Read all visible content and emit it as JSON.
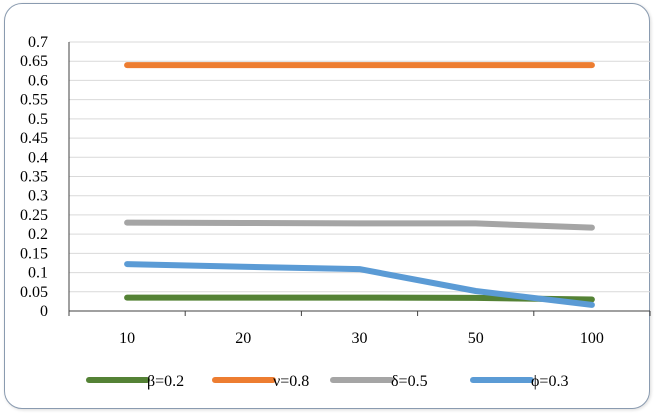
{
  "chart_data": {
    "type": "line",
    "categories": [
      "10",
      "20",
      "30",
      "50",
      "100"
    ],
    "ylim": [
      0,
      0.7
    ],
    "yticks": [
      "0",
      "0.05",
      "0.1",
      "0.15",
      "0.2",
      "0.25",
      "0.3",
      "0.35",
      "0.4",
      "0.45",
      "0.5",
      "0.55",
      "0.6",
      "0.65",
      "0.7"
    ],
    "grid": true,
    "legend_position": "bottom",
    "series": [
      {
        "name": "β=0.2",
        "color": "#548235",
        "values": [
          0.035,
          0.035,
          0.035,
          0.034,
          0.03
        ]
      },
      {
        "name": "ν=0.8",
        "color": "#ed7d31",
        "values": [
          0.64,
          0.64,
          0.64,
          0.64,
          0.64
        ]
      },
      {
        "name": "δ=0.5",
        "color": "#a5a5a5",
        "values": [
          0.23,
          0.229,
          0.228,
          0.228,
          0.217
        ]
      },
      {
        "name": "ϕ=0.3",
        "color": "#5b9bd5",
        "values": [
          0.122,
          0.115,
          0.109,
          0.052,
          0.016
        ]
      }
    ]
  }
}
